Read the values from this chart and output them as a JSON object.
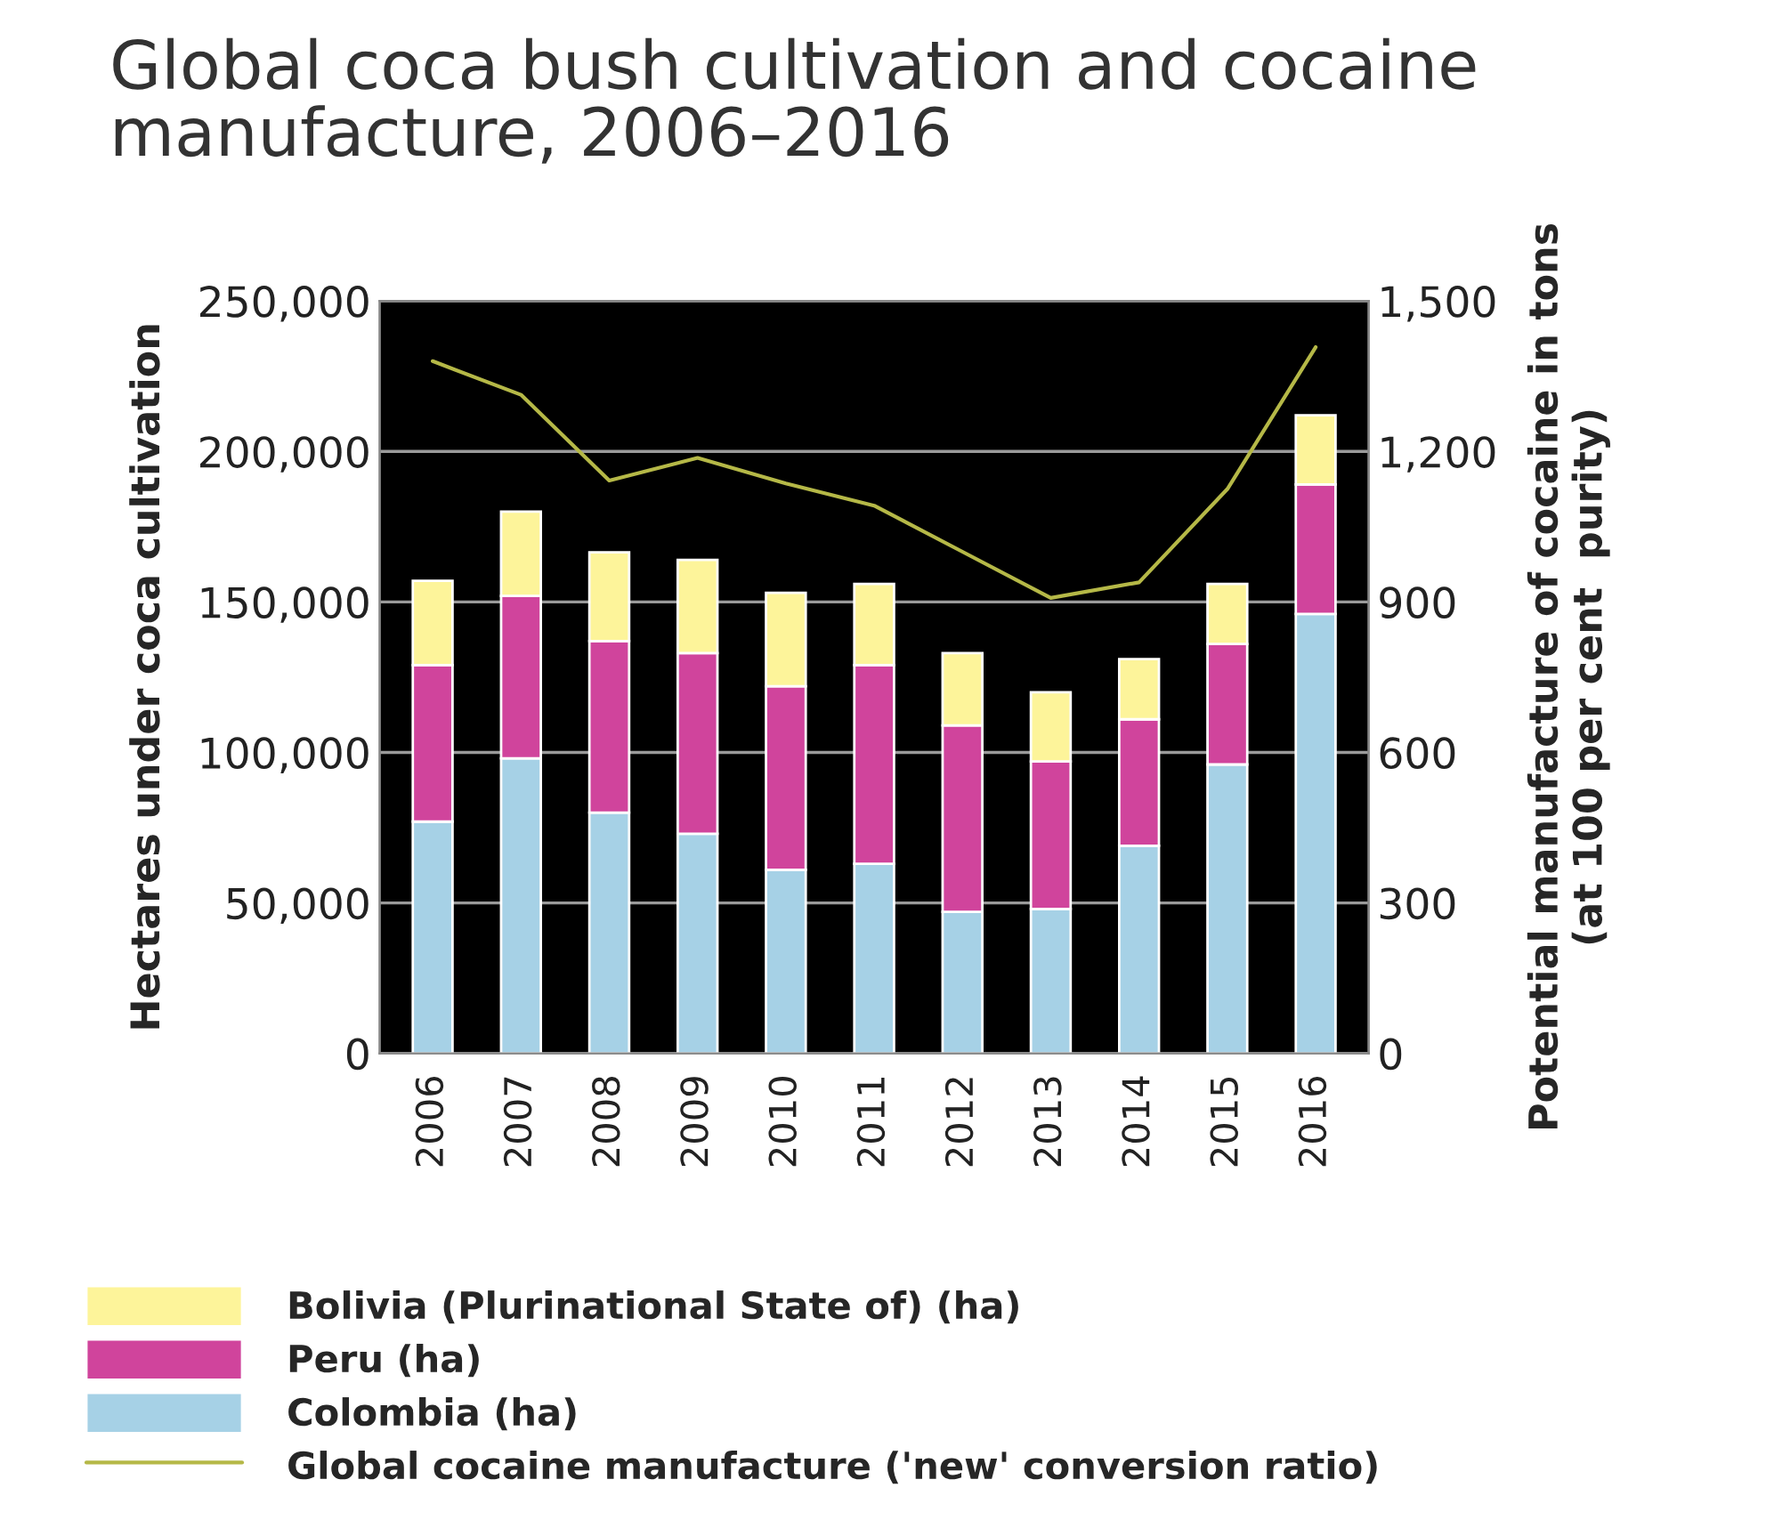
{
  "chart_data": {
    "type": "bar",
    "title": "Global coca bush cultivation and cocaine\nmanufacture, 2006–2016",
    "ylabel": "Hectares under coca cultivation",
    "y2label": "Potential manufacture of cocaine in tons\n(at 100 per cent  purity)",
    "categories": [
      "2006",
      "2007",
      "2008",
      "2009",
      "2010",
      "2011",
      "2012",
      "2013",
      "2014",
      "2015",
      "2016"
    ],
    "stacked": true,
    "series": [
      {
        "name": "Colombia (ha)",
        "color": "#a6d1e6",
        "values": [
          77000,
          98000,
          80000,
          73000,
          61000,
          63000,
          47000,
          48000,
          69000,
          96000,
          146000
        ]
      },
      {
        "name": "Peru (ha)",
        "color": "#d0449c",
        "values": [
          52000,
          54000,
          57000,
          60000,
          61000,
          66000,
          62000,
          49000,
          42000,
          40000,
          43000
        ]
      },
      {
        "name": "Bolivia (Plurinational State of) (ha)",
        "color": "#fdf49a",
        "values": [
          28000,
          28000,
          29500,
          31000,
          31000,
          27000,
          24000,
          23000,
          20000,
          20000,
          23000
        ]
      },
      {
        "name": "Global cocaine manufacture ('new' conversion ratio)",
        "type": "line",
        "axis": "y2",
        "color": "#b5b847",
        "values": [
          1380,
          1313,
          1142,
          1187,
          1136,
          1092,
          1000,
          908,
          939,
          1125,
          1408
        ]
      }
    ],
    "ylim": [
      0,
      250000
    ],
    "yticks": [
      0,
      {
        "value": 50000,
        "label": "50,000"
      },
      {
        "value": 100000,
        "label": "100,000"
      },
      {
        "value": 150000,
        "label": "150,000"
      },
      {
        "value": 200000,
        "label": "200,000"
      },
      {
        "value": 250000,
        "label": "250,000"
      }
    ],
    "y2lim": [
      0,
      1500
    ],
    "y2ticks": [
      0,
      300,
      600,
      900,
      {
        "value": 1200,
        "label": "1,200"
      },
      {
        "value": 1500,
        "label": "1,500"
      }
    ],
    "grid": "y",
    "legend": "bottom"
  }
}
